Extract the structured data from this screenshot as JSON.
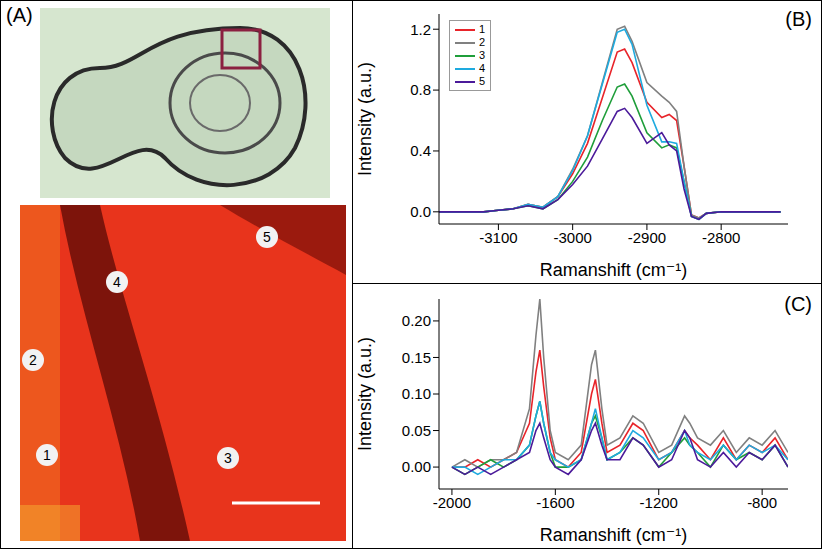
{
  "panel_a": {
    "panel_label": "(A)",
    "map_points": [
      "1",
      "2",
      "3",
      "4",
      "5"
    ]
  },
  "chart_data": [
    {
      "type": "line",
      "panel_label": "(B)",
      "x_label": "Ramanshift (cm⁻¹)",
      "y_label": "Intensity (a.u.)",
      "legend": "upper left",
      "x": [
        -3180,
        -3160,
        -3140,
        -3120,
        -3100,
        -3080,
        -3060,
        -3040,
        -3020,
        -3000,
        -2980,
        -2960,
        -2940,
        -2930,
        -2920,
        -2900,
        -2880,
        -2870,
        -2860,
        -2850,
        -2840,
        -2830,
        -2820,
        -2800,
        -2780,
        -2760,
        -2740,
        -2720
      ],
      "xlim": [
        -3180,
        -2710
      ],
      "xticks": [
        -3100,
        -3000,
        -2900,
        -2800
      ],
      "ylim": [
        -0.08,
        1.3
      ],
      "yticks": [
        {
          "value": 0,
          "label": "0.0"
        },
        0.4,
        0.8,
        1.2
      ],
      "series": [
        {
          "name": "1",
          "color": "#e8242a",
          "values": [
            0,
            0,
            0,
            0,
            0.01,
            0.02,
            0.05,
            0.03,
            0.1,
            0.25,
            0.45,
            0.75,
            1.05,
            1.07,
            0.98,
            0.72,
            0.62,
            0.64,
            0.6,
            0.3,
            -0.02,
            -0.04,
            -0.01,
            0,
            0,
            0,
            0,
            0
          ]
        },
        {
          "name": "2",
          "color": "#808080",
          "values": [
            0,
            0,
            0,
            0,
            0.01,
            0.02,
            0.05,
            0.03,
            0.1,
            0.28,
            0.5,
            0.85,
            1.2,
            1.22,
            1.12,
            0.85,
            0.76,
            0.72,
            0.66,
            0.3,
            -0.02,
            -0.04,
            -0.01,
            0,
            0,
            0,
            0,
            0
          ]
        },
        {
          "name": "3",
          "color": "#1f9e3a",
          "values": [
            0,
            0,
            0,
            0,
            0.01,
            0.02,
            0.04,
            0.02,
            0.08,
            0.2,
            0.36,
            0.6,
            0.82,
            0.84,
            0.76,
            0.52,
            0.42,
            0.44,
            0.42,
            0.2,
            -0.03,
            -0.05,
            -0.01,
            0,
            0,
            0,
            0,
            0
          ]
        },
        {
          "name": "4",
          "color": "#1eaadf",
          "values": [
            0,
            0,
            0,
            0,
            0.01,
            0.02,
            0.05,
            0.03,
            0.1,
            0.27,
            0.5,
            0.84,
            1.18,
            1.2,
            1.1,
            0.7,
            0.46,
            0.46,
            0.45,
            0.2,
            -0.03,
            -0.05,
            -0.01,
            0,
            0,
            0,
            0,
            0
          ]
        },
        {
          "name": "5",
          "color": "#4b1a9a",
          "values": [
            0,
            0,
            0,
            0,
            0.01,
            0.02,
            0.04,
            0.02,
            0.08,
            0.18,
            0.3,
            0.48,
            0.66,
            0.68,
            0.62,
            0.45,
            0.52,
            0.44,
            0.4,
            0.15,
            -0.03,
            -0.05,
            -0.01,
            0,
            0,
            0,
            0,
            0
          ]
        }
      ]
    },
    {
      "type": "line",
      "panel_label": "(C)",
      "x_label": "Ramanshift (cm⁻¹)",
      "y_label": "Intensity (a.u.)",
      "x": [
        -2000,
        -1950,
        -1900,
        -1850,
        -1800,
        -1750,
        -1700,
        -1675,
        -1660,
        -1645,
        -1620,
        -1600,
        -1550,
        -1500,
        -1460,
        -1445,
        -1420,
        -1400,
        -1350,
        -1300,
        -1260,
        -1200,
        -1150,
        -1100,
        -1080,
        -1050,
        -1000,
        -950,
        -900,
        -850,
        -800,
        -750,
        -700
      ],
      "xlim": [
        -2050,
        -700
      ],
      "xticks": [
        -2000,
        -1600,
        -1200,
        -800
      ],
      "ylim": [
        -0.03,
        0.23
      ],
      "yticks": [
        {
          "value": 0,
          "label": "0.00"
        },
        {
          "value": 0.05,
          "label": "0.05"
        },
        {
          "value": 0.1,
          "label": "0.10"
        },
        {
          "value": 0.15,
          "label": "0.15"
        },
        {
          "value": 0.2,
          "label": "0.20"
        }
      ],
      "series": [
        {
          "name": "1",
          "color": "#e8242a",
          "values": [
            0,
            0,
            0.01,
            0,
            0.01,
            0.02,
            0.06,
            0.13,
            0.16,
            0.11,
            0.04,
            0.01,
            0,
            0.02,
            0.1,
            0.12,
            0.06,
            0.02,
            0.03,
            0.06,
            0.05,
            0.01,
            0.02,
            0.05,
            0.04,
            0.03,
            0.01,
            0.04,
            0.01,
            0.03,
            0.02,
            0.04,
            0.01
          ]
        },
        {
          "name": "2",
          "color": "#808080",
          "values": [
            0,
            0.01,
            0,
            0.01,
            0.01,
            0.02,
            0.08,
            0.18,
            0.23,
            0.15,
            0.05,
            0.02,
            0.01,
            0.03,
            0.14,
            0.16,
            0.08,
            0.03,
            0.04,
            0.07,
            0.06,
            0.02,
            0.03,
            0.07,
            0.06,
            0.04,
            0.03,
            0.05,
            0.02,
            0.04,
            0.03,
            0.05,
            0.02
          ]
        },
        {
          "name": "3",
          "color": "#1f9e3a",
          "values": [
            0,
            -0.01,
            0,
            0.01,
            0,
            0.01,
            0.03,
            0.07,
            0.09,
            0.06,
            0.02,
            0,
            0,
            0.01,
            0.06,
            0.07,
            0.04,
            0.01,
            0.02,
            0.04,
            0.03,
            0,
            0.02,
            0.04,
            0.03,
            0.02,
            0,
            0.03,
            0.01,
            0.02,
            0.01,
            0.03,
            0
          ]
        },
        {
          "name": "4",
          "color": "#1eaadf",
          "values": [
            0,
            0,
            -0.01,
            0,
            0.01,
            0.01,
            0.03,
            0.07,
            0.09,
            0.06,
            0.02,
            0.01,
            0,
            0.01,
            0.06,
            0.08,
            0.04,
            0.01,
            0.02,
            0.05,
            0.04,
            0.01,
            0.02,
            0.05,
            0.03,
            0.02,
            0.01,
            0.03,
            0.01,
            0.03,
            0.02,
            0.03,
            0.01
          ]
        },
        {
          "name": "5",
          "color": "#4b1a9a",
          "values": [
            0,
            -0.01,
            0,
            -0.01,
            0,
            0.01,
            0.02,
            0.05,
            0.06,
            0.04,
            0.01,
            0,
            -0.01,
            0.01,
            0.05,
            0.06,
            0.03,
            0.01,
            0.01,
            0.04,
            0.03,
            0,
            0.01,
            0.05,
            0.04,
            0.01,
            0,
            0.02,
            0,
            0.02,
            0.01,
            0.03,
            0
          ]
        }
      ]
    }
  ]
}
